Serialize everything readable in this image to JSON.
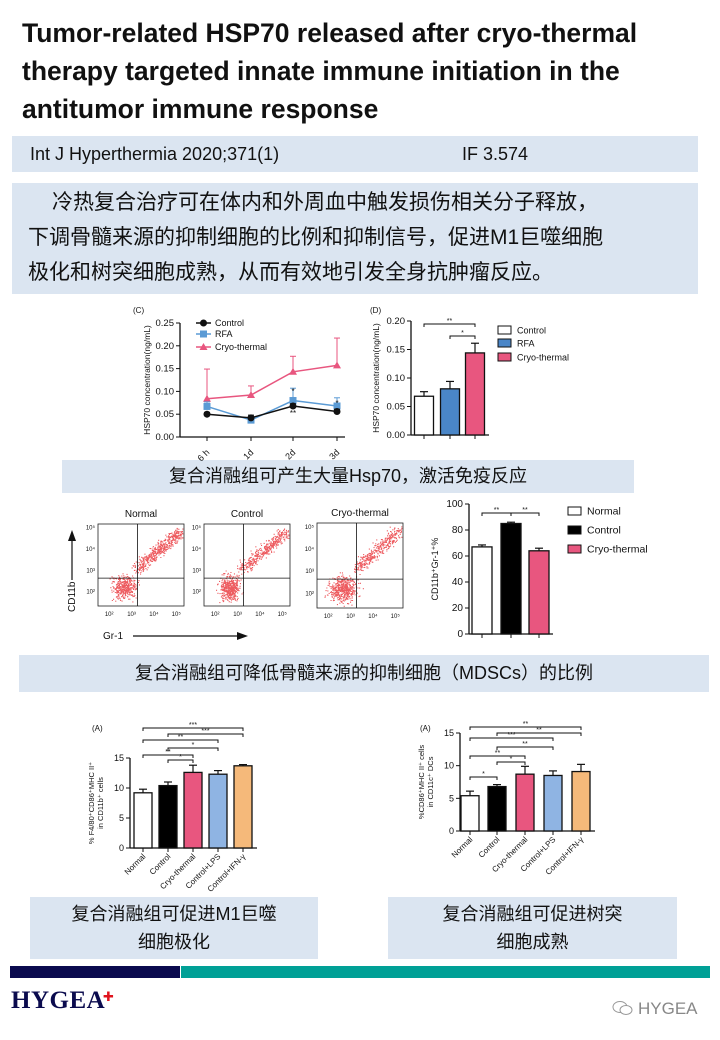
{
  "title_lines": [
    "Tumor-related HSP70 released after cryo-thermal",
    "therapy targeted innate immune initiation in the",
    "antitumor immune response"
  ],
  "citation": {
    "journal": "Int J Hyperthermia 2020;371(1)",
    "impact_factor": "IF 3.574"
  },
  "summary_lines": [
    "冷热复合治疗可在体内和外周血中触发损伤相关分子释放，",
    "下调骨髓来源的抑制细胞的比例和抑制信号，促进M1巨噬细胞",
    "极化和树突细胞成熟，从而有效地引发全身抗肿瘤反应。"
  ],
  "captions": {
    "hsp70": "复合消融组可产生大量Hsp70，激活免疫反应",
    "mdsc": "复合消融组可降低骨髓来源的抑制细胞（MDSCs）的比例",
    "m1_lines": [
      "复合消融组可促进M1巨噬",
      "细胞极化"
    ],
    "dc_lines": [
      "复合消融组可促进树突",
      "细胞成熟"
    ]
  },
  "flow_cytometry": {
    "panels": [
      "Normal",
      "Control",
      "Cryo-thermal"
    ],
    "y_label": "CD11b",
    "x_label": "Gr-1",
    "tick_labels": [
      "10²",
      "10³",
      "10⁴",
      "10⁵"
    ],
    "dot_color": "#e8262b"
  },
  "chart_data": [
    {
      "panel": "(C)",
      "type": "line",
      "ylabel": "HSP70 concentration(ng/mL)",
      "categories": [
        "6 h",
        "1d",
        "2d",
        "3d"
      ],
      "ylim": [
        0,
        0.25
      ],
      "yticks": [
        "0.00",
        "0.05",
        "0.10",
        "0.15",
        "0.20",
        "0.25"
      ],
      "legend": "top-left",
      "annotations": [
        "*",
        "**"
      ],
      "series": [
        {
          "name": "Control",
          "color": "#111111",
          "marker": "circle",
          "values": [
            0.05,
            0.042,
            0.068,
            0.056
          ],
          "errors": [
            0.004,
            0.006,
            0.005,
            0.005
          ]
        },
        {
          "name": "RFA",
          "color": "#5b9bd5",
          "marker": "square",
          "values": [
            0.067,
            0.037,
            0.08,
            0.068
          ],
          "errors": [
            0.01,
            0.004,
            0.027,
            0.018
          ]
        },
        {
          "name": "Cryo-thermal",
          "color": "#e8567f",
          "marker": "triangle",
          "values": [
            0.084,
            0.092,
            0.143,
            0.157
          ],
          "errors": [
            0.065,
            0.02,
            0.034,
            0.06
          ]
        }
      ]
    },
    {
      "panel": "(D)",
      "type": "bar",
      "ylabel": "HSP70 concentration(ng/mL)",
      "categories": [
        "Control",
        "RFA",
        "Cryo-thermal"
      ],
      "values": [
        0.068,
        0.081,
        0.144
      ],
      "errors": [
        0.008,
        0.013,
        0.017
      ],
      "colors": [
        "#ffffff",
        "#4a86c8",
        "#e8567f"
      ],
      "ylim": [
        0,
        0.2
      ],
      "yticks": [
        "0.00",
        "0.05",
        "0.10",
        "0.15",
        "0.20"
      ],
      "legend": "right",
      "brackets": [
        {
          "from": 0,
          "to": 2,
          "label": "**"
        },
        {
          "from": 1,
          "to": 2,
          "label": "*"
        }
      ]
    },
    {
      "type": "bar",
      "ylabel": "CD11b⁺Gr-1⁺%",
      "categories": [
        "Normal",
        "Control",
        "Cryo-thermal"
      ],
      "values": [
        67,
        85,
        64
      ],
      "errors": [
        1.5,
        1,
        2
      ],
      "colors": [
        "#ffffff",
        "#000000",
        "#e8567f"
      ],
      "ylim": [
        0,
        100
      ],
      "yticks": [
        "0",
        "20",
        "40",
        "60",
        "80",
        "100"
      ],
      "legend": "right",
      "brackets": [
        {
          "from": 0,
          "to": 1,
          "label": "**"
        },
        {
          "from": 1,
          "to": 2,
          "label": "**"
        }
      ]
    },
    {
      "panel": "(A)",
      "type": "bar",
      "ylabel_lines": [
        "% F4/80⁺CD86⁺MHC II⁺",
        "in CD11b⁺ cells"
      ],
      "categories": [
        "Normal",
        "Control",
        "Cryo-thermal",
        "Control+LPS",
        "Control+IFN-γ"
      ],
      "values": [
        9.2,
        10.4,
        12.6,
        12.3,
        13.7
      ],
      "errors": [
        0.6,
        0.6,
        1.2,
        0.6,
        0.2
      ],
      "colors": [
        "#ffffff",
        "#000000",
        "#e8567f",
        "#8fb4e3",
        "#f5b97a"
      ],
      "ylim": [
        0,
        15
      ],
      "yticks": [
        "0",
        "5",
        "10",
        "15"
      ],
      "brackets": [
        {
          "from": 0,
          "to": 4,
          "label": "***"
        },
        {
          "from": 1,
          "to": 4,
          "label": "***"
        },
        {
          "from": 0,
          "to": 3,
          "label": "**"
        },
        {
          "from": 1,
          "to": 3,
          "label": "*"
        },
        {
          "from": 0,
          "to": 2,
          "label": "**"
        },
        {
          "from": 1,
          "to": 2,
          "label": "*"
        }
      ]
    },
    {
      "panel": "(A)",
      "type": "bar",
      "ylabel_lines": [
        "%CD86⁺MHC II⁺ cells",
        "in CD11c⁺ DCs"
      ],
      "categories": [
        "Normal",
        "Control",
        "Cryo-thermal",
        "Control+LPS",
        "Control+IFN-γ"
      ],
      "values": [
        5.4,
        6.8,
        8.7,
        8.5,
        9.1
      ],
      "errors": [
        0.7,
        0.3,
        1.2,
        0.7,
        1.1
      ],
      "colors": [
        "#ffffff",
        "#000000",
        "#e8567f",
        "#8fb4e3",
        "#f5b97a"
      ],
      "ylim": [
        0,
        15
      ],
      "yticks": [
        "0",
        "5",
        "10",
        "15"
      ],
      "brackets": [
        {
          "from": 0,
          "to": 4,
          "label": "**"
        },
        {
          "from": 1,
          "to": 4,
          "label": "**"
        },
        {
          "from": 0,
          "to": 3,
          "label": "***"
        },
        {
          "from": 1,
          "to": 3,
          "label": "**"
        },
        {
          "from": 0,
          "to": 2,
          "label": "**"
        },
        {
          "from": 1,
          "to": 2,
          "label": "*"
        },
        {
          "from": 0,
          "to": 1,
          "label": "*"
        }
      ]
    }
  ],
  "footer": {
    "logo": "HYGEA",
    "watermark": "HYGEA",
    "colors": {
      "navy": "#0a0a4e",
      "teal": "#00a096",
      "accent_red": "#e0141e",
      "panel_bg": "#dbe5f1"
    }
  }
}
